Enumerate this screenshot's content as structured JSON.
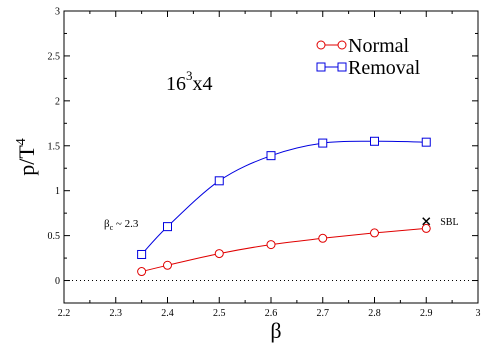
{
  "chart_data": {
    "type": "line",
    "xlabel": "β",
    "ylabel_main": "p/T",
    "ylabel_sup": "4",
    "xlim": [
      2.2,
      3.0
    ],
    "ylim": [
      -0.25,
      3.0
    ],
    "xticks": [
      2.2,
      2.3,
      2.4,
      2.5,
      2.6,
      2.7,
      2.8,
      2.9,
      3.0
    ],
    "xtick_labels": [
      "2.2",
      "2.3",
      "2.4",
      "2.5",
      "2.6",
      "2.7",
      "2.8",
      "2.9",
      "3"
    ],
    "yticks": [
      0,
      0.5,
      1.0,
      1.5,
      2.0,
      2.5,
      3.0
    ],
    "ytick_labels": [
      "0",
      "0.5",
      "1",
      "1.5",
      "2",
      "2.5",
      "3"
    ],
    "zero_line": true,
    "legend_position": "top-right",
    "series": [
      {
        "name": "Normal",
        "color": "#e00000",
        "marker": "circle",
        "x": [
          2.35,
          2.4,
          2.5,
          2.6,
          2.7,
          2.8,
          2.9
        ],
        "y": [
          0.1,
          0.17,
          0.3,
          0.4,
          0.47,
          0.53,
          0.58
        ]
      },
      {
        "name": "Removal",
        "color": "#0000e0",
        "marker": "square",
        "x": [
          2.35,
          2.4,
          2.5,
          2.6,
          2.7,
          2.8,
          2.9
        ],
        "y": [
          0.29,
          0.6,
          1.11,
          1.39,
          1.53,
          1.55,
          1.54
        ]
      }
    ],
    "sbl_point": {
      "x": 2.9,
      "y": 0.66,
      "label": "SBL"
    },
    "annotations": {
      "lattice_base": "16",
      "lattice_sup": "3",
      "lattice_rest": "x4",
      "beta_c_main": "β",
      "beta_c_sub": "c",
      "beta_c_value": " ~ 2.3"
    }
  }
}
